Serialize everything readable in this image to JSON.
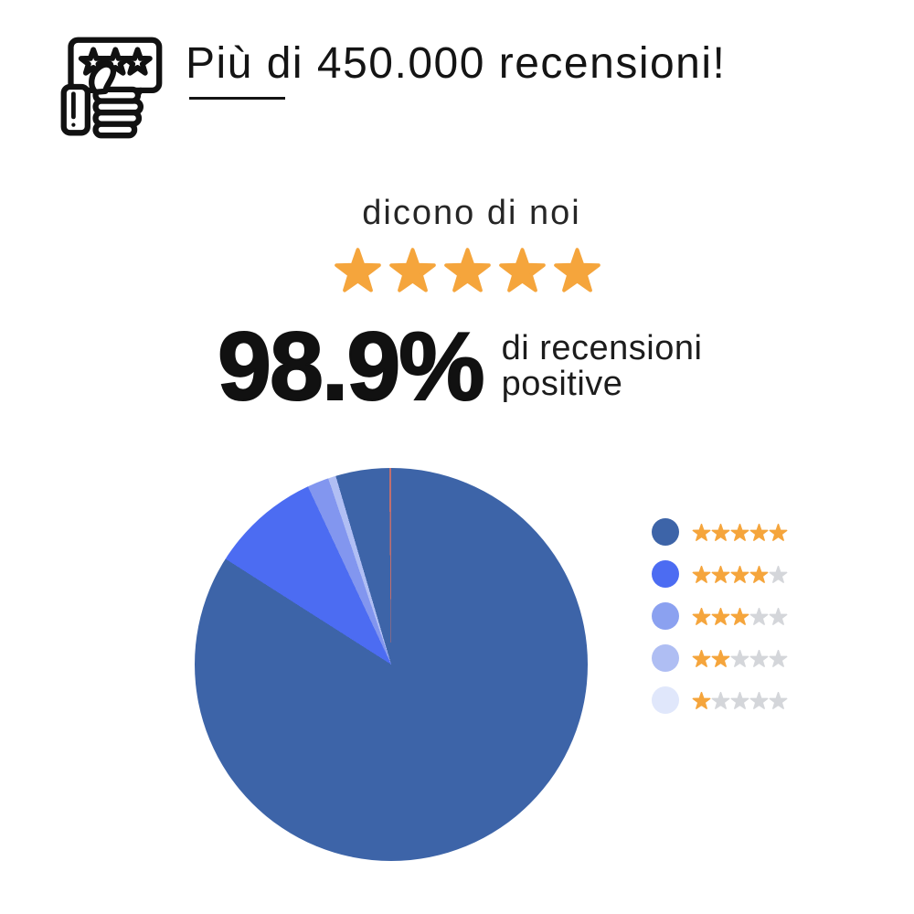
{
  "header": {
    "title": "Più di 450.000 recensioni!",
    "icon": "review-speech-bubble-thumbs-up-icon"
  },
  "tagline": {
    "text": "dicono di noi",
    "star_count": 5
  },
  "stat": {
    "value": "98.9%",
    "label_line1": "di recensioni",
    "label_line2": "positive"
  },
  "colors": {
    "star_orange": "#F5A53C",
    "star_gray": "#D4D6DA",
    "ink": "#141414",
    "rating_5": "#3D64A8",
    "rating_4": "#4C6CF2",
    "rating_3": "#8296EF",
    "rating_2": "#B1BFF4",
    "rating_1": "#E0E7FB",
    "tiny_red_sliver": "#C06E6E"
  },
  "chart_data": {
    "type": "pie",
    "title": "",
    "legend_position": "right",
    "categories": [
      "5 stelle",
      "4 stelle",
      "3 stelle",
      "2 stelle",
      "1 stella"
    ],
    "values": [
      88.5,
      9.0,
      1.8,
      0.6,
      0.1
    ],
    "unit": "percent",
    "colors": [
      "#3D64A8",
      "#4C6CF2",
      "#8296EF",
      "#B1BFF4",
      "#E0E7FB"
    ],
    "segments_deg": [
      {
        "color": "#3D64A8",
        "from": 0,
        "to": 302.5
      },
      {
        "color": "#4C6CF2",
        "from": 302.5,
        "to": 334.9
      },
      {
        "color": "#8296EF",
        "from": 334.9,
        "to": 341.3
      },
      {
        "color": "#B1BFF4",
        "from": 341.3,
        "to": 343.6
      },
      {
        "color": "#3D64A8",
        "from": 343.6,
        "to": 359.4
      },
      {
        "color": "#C06E6E",
        "from": 359.4,
        "to": 360
      }
    ]
  },
  "legend": {
    "rows": [
      {
        "label": "5 stars",
        "color": "#3D64A8",
        "filled": 5
      },
      {
        "label": "4 stars",
        "color": "#4C6CF2",
        "filled": 4
      },
      {
        "label": "3 stars",
        "color": "#8BA1F0",
        "filled": 3
      },
      {
        "label": "2 stars",
        "color": "#AFBEF3",
        "filled": 2
      },
      {
        "label": "1 star",
        "color": "#E0E7FB",
        "filled": 1
      }
    ],
    "stars_per_row": 5
  }
}
